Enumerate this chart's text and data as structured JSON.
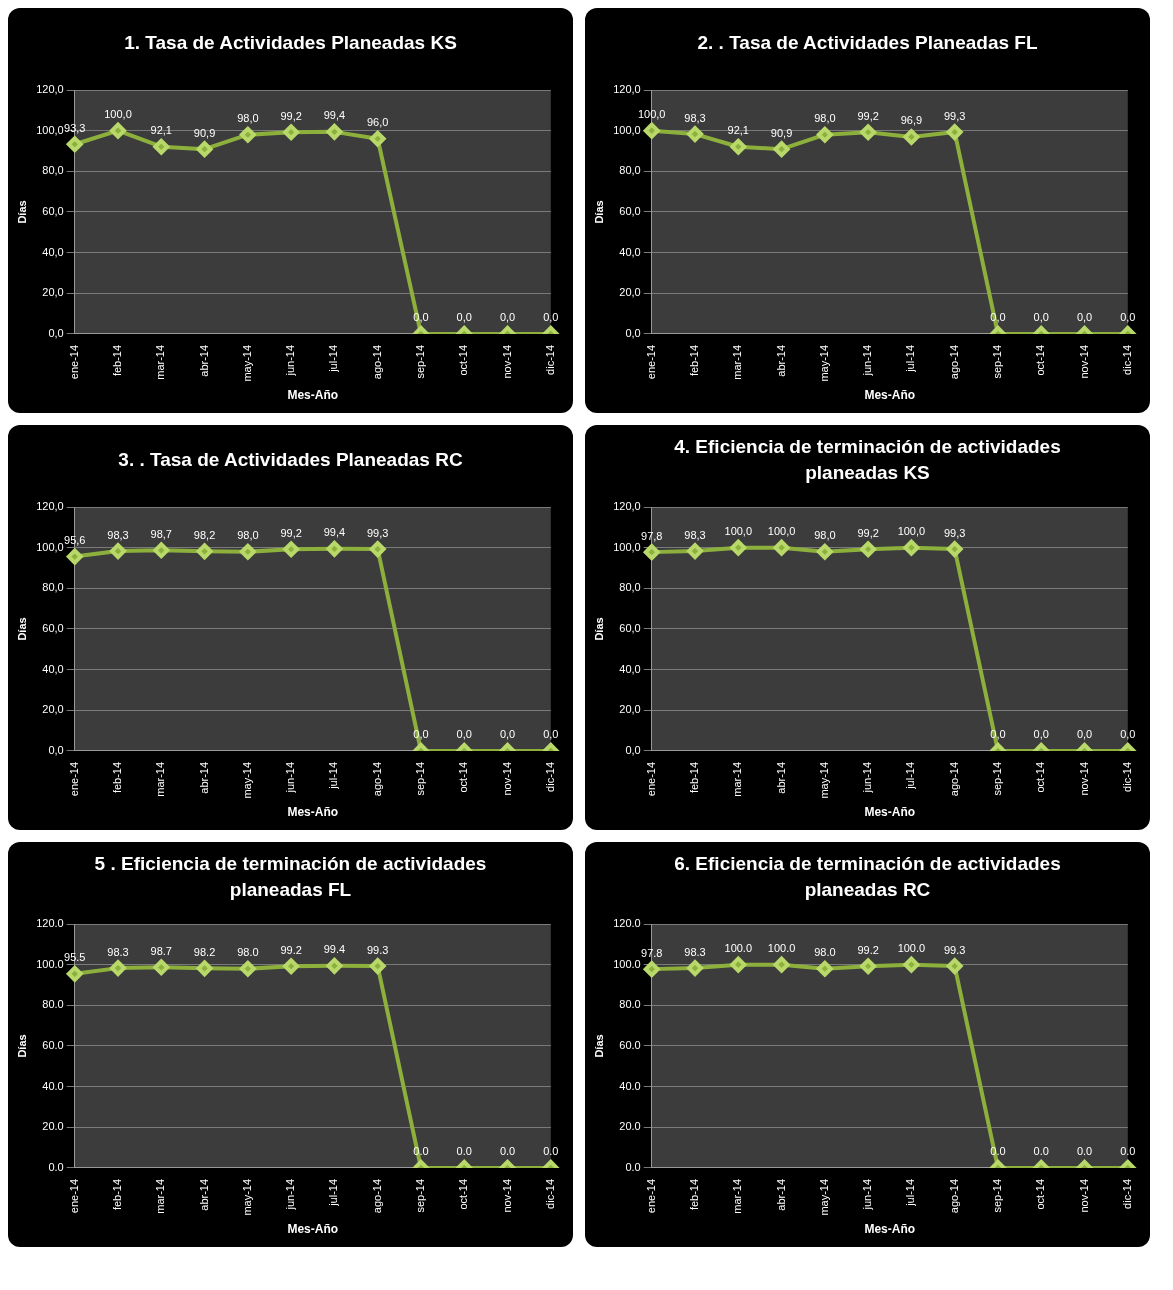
{
  "chart_data": [
    {
      "type": "line",
      "title": "1. Tasa de Actividades Planeadas KS",
      "xlabel": "Mes-Año",
      "ylabel": "Días",
      "categories": [
        "ene-14",
        "feb-14",
        "mar-14",
        "abr-14",
        "may-14",
        "jun-14",
        "jul-14",
        "ago-14",
        "sep-14",
        "oct-14",
        "nov-14",
        "dic-14"
      ],
      "series": [
        {
          "color": "#8db03c",
          "values": [
            93.3,
            100,
            92.1,
            90.9,
            98.0,
            99.2,
            99.4,
            96.0,
            0,
            0,
            0,
            0
          ],
          "value_labels": [
            "93,3",
            "100,0",
            "92,1",
            "90,9",
            "98,0",
            "99,2",
            "99,4",
            "96,0",
            "0,0",
            "0,0",
            "0,0",
            "0,0"
          ]
        }
      ],
      "ylim": [
        0,
        120
      ],
      "yticks": [
        {
          "value": 0,
          "label": "0,0"
        },
        {
          "value": 20,
          "label": "20,0"
        },
        {
          "value": 40,
          "label": "40,0"
        },
        {
          "value": 60,
          "label": "60,0"
        },
        {
          "value": 80,
          "label": "80,0"
        },
        {
          "value": 100,
          "label": "100,0"
        },
        {
          "value": 120,
          "label": "120,0"
        }
      ],
      "grid": "y",
      "marker": "diamond"
    },
    {
      "type": "line",
      "title": "2. . Tasa de Actividades Planeadas  FL",
      "xlabel": "Mes-Año",
      "ylabel": "Días",
      "categories": [
        "ene-14",
        "feb-14",
        "mar-14",
        "abr-14",
        "may-14",
        "jun-14",
        "jul-14",
        "ago-14",
        "sep-14",
        "oct-14",
        "nov-14",
        "dic-14"
      ],
      "series": [
        {
          "color": "#8db03c",
          "values": [
            100,
            98.3,
            92.1,
            90.9,
            98.0,
            99.2,
            96.9,
            99.3,
            0,
            0,
            0,
            0
          ],
          "value_labels": [
            "100,0",
            "98,3",
            "92,1",
            "90,9",
            "98,0",
            "99,2",
            "96,9",
            "99,3",
            "0,0",
            "0,0",
            "0,0",
            "0,0"
          ]
        }
      ],
      "ylim": [
        0,
        120
      ],
      "yticks": [
        {
          "value": 0,
          "label": "0,0"
        },
        {
          "value": 20,
          "label": "20,0"
        },
        {
          "value": 40,
          "label": "40,0"
        },
        {
          "value": 60,
          "label": "60,0"
        },
        {
          "value": 80,
          "label": "80,0"
        },
        {
          "value": 100,
          "label": "100,0"
        },
        {
          "value": 120,
          "label": "120,0"
        }
      ],
      "grid": "y",
      "marker": "diamond"
    },
    {
      "type": "line",
      "title": "3. . Tasa de Actividades Planeadas  RC",
      "xlabel": "Mes-Año",
      "ylabel": "Días",
      "categories": [
        "ene-14",
        "feb-14",
        "mar-14",
        "abr-14",
        "may-14",
        "jun-14",
        "jul-14",
        "ago-14",
        "sep-14",
        "oct-14",
        "nov-14",
        "dic-14"
      ],
      "series": [
        {
          "color": "#8db03c",
          "values": [
            95.6,
            98.3,
            98.7,
            98.2,
            98.0,
            99.2,
            99.4,
            99.3,
            0,
            0,
            0,
            0
          ],
          "value_labels": [
            "95,6",
            "98,3",
            "98,7",
            "98,2",
            "98,0",
            "99,2",
            "99,4",
            "99,3",
            "0,0",
            "0,0",
            "0,0",
            "0,0"
          ]
        }
      ],
      "ylim": [
        0,
        120
      ],
      "yticks": [
        {
          "value": 0,
          "label": "0,0"
        },
        {
          "value": 20,
          "label": "20,0"
        },
        {
          "value": 40,
          "label": "40,0"
        },
        {
          "value": 60,
          "label": "60,0"
        },
        {
          "value": 80,
          "label": "80,0"
        },
        {
          "value": 100,
          "label": "100,0"
        },
        {
          "value": 120,
          "label": "120,0"
        }
      ],
      "grid": "y",
      "marker": "diamond"
    },
    {
      "type": "line",
      "title": "4. Eficiencia de terminación de actividades planeadas KS",
      "xlabel": "Mes-Año",
      "ylabel": "Días",
      "categories": [
        "ene-14",
        "feb-14",
        "mar-14",
        "abr-14",
        "may-14",
        "jun-14",
        "jul-14",
        "ago-14",
        "sep-14",
        "oct-14",
        "nov-14",
        "dic-14"
      ],
      "series": [
        {
          "color": "#8db03c",
          "values": [
            97.8,
            98.3,
            100,
            100,
            98.0,
            99.2,
            100,
            99.3,
            0,
            0,
            0,
            0
          ],
          "value_labels": [
            "97,8",
            "98,3",
            "100,0",
            "100,0",
            "98,0",
            "99,2",
            "100,0",
            "99,3",
            "0,0",
            "0,0",
            "0,0",
            "0,0"
          ]
        }
      ],
      "ylim": [
        0,
        120
      ],
      "yticks": [
        {
          "value": 0,
          "label": "0,0"
        },
        {
          "value": 20,
          "label": "20,0"
        },
        {
          "value": 40,
          "label": "40,0"
        },
        {
          "value": 60,
          "label": "60,0"
        },
        {
          "value": 80,
          "label": "80,0"
        },
        {
          "value": 100,
          "label": "100,0"
        },
        {
          "value": 120,
          "label": "120,0"
        }
      ],
      "grid": "y",
      "marker": "diamond"
    },
    {
      "type": "line",
      "title": "5 . Eficiencia de terminación de actividades planeadas FL",
      "xlabel": "Mes-Año",
      "ylabel": "Días",
      "categories": [
        "ene-14",
        "feb-14",
        "mar-14",
        "abr-14",
        "may-14",
        "jun-14",
        "jul-14",
        "ago-14",
        "sep-14",
        "oct-14",
        "nov-14",
        "dic-14"
      ],
      "series": [
        {
          "color": "#8db03c",
          "values": [
            95.5,
            98.3,
            98.7,
            98.2,
            98.0,
            99.2,
            99.4,
            99.3,
            0,
            0,
            0,
            0
          ],
          "value_labels": [
            "95.5",
            "98.3",
            "98.7",
            "98.2",
            "98.0",
            "99.2",
            "99.4",
            "99.3",
            "0.0",
            "0.0",
            "0.0",
            "0.0"
          ]
        }
      ],
      "ylim": [
        0,
        120
      ],
      "yticks": [
        {
          "value": 0,
          "label": "0.0"
        },
        {
          "value": 20,
          "label": "20.0"
        },
        {
          "value": 40,
          "label": "40.0"
        },
        {
          "value": 60,
          "label": "60.0"
        },
        {
          "value": 80,
          "label": "80.0"
        },
        {
          "value": 100,
          "label": "100.0"
        },
        {
          "value": 120,
          "label": "120.0"
        }
      ],
      "grid": "y",
      "marker": "diamond"
    },
    {
      "type": "line",
      "title": "6. Eficiencia de terminación de actividades planeadas RC",
      "xlabel": "Mes-Año",
      "ylabel": "Días",
      "categories": [
        "ene-14",
        "feb-14",
        "mar-14",
        "abr-14",
        "may-14",
        "jun-14",
        "jul-14",
        "ago-14",
        "sep-14",
        "oct-14",
        "nov-14",
        "dic-14"
      ],
      "series": [
        {
          "color": "#8db03c",
          "values": [
            97.8,
            98.3,
            100,
            100,
            98.0,
            99.2,
            100,
            99.3,
            0,
            0,
            0,
            0
          ],
          "value_labels": [
            "97.8",
            "98.3",
            "100.0",
            "100.0",
            "98.0",
            "99.2",
            "100.0",
            "99.3",
            "0.0",
            "0.0",
            "0.0",
            "0.0"
          ]
        }
      ],
      "ylim": [
        0,
        120
      ],
      "yticks": [
        {
          "value": 0,
          "label": "0.0"
        },
        {
          "value": 20,
          "label": "20.0"
        },
        {
          "value": 40,
          "label": "40.0"
        },
        {
          "value": 60,
          "label": "60.0"
        },
        {
          "value": 80,
          "label": "80.0"
        },
        {
          "value": 100,
          "label": "100.0"
        },
        {
          "value": 120,
          "label": "120.0"
        }
      ],
      "grid": "y",
      "marker": "diamond"
    }
  ]
}
